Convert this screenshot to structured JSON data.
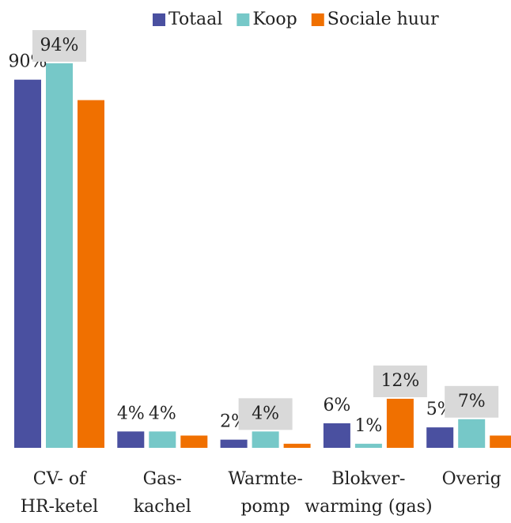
{
  "chart_data": {
    "type": "bar",
    "categories": [
      [
        "CV- of",
        "HR-ketel"
      ],
      [
        "Gas-",
        "kachel"
      ],
      [
        "Warmte-",
        "pomp"
      ],
      [
        "Blokver-",
        "warming (gas)"
      ],
      [
        "Overig"
      ]
    ],
    "series": [
      {
        "name": "Totaal",
        "color": "#4a50a0",
        "values": [
          90,
          4,
          2,
          6,
          5
        ],
        "value_labels": [
          "90%",
          "4%",
          "2%",
          "6%",
          "5%"
        ]
      },
      {
        "name": "Koop",
        "color": "#76c8c8",
        "values": [
          94,
          4,
          4,
          1,
          7
        ],
        "value_labels": [
          "94%",
          "4%",
          "4%",
          "1%",
          "7%"
        ]
      },
      {
        "name": "Sociale huur",
        "color": "#f07000",
        "values": [
          85,
          3,
          1,
          12,
          3
        ],
        "value_labels": [
          null,
          null,
          null,
          "12%",
          null
        ]
      }
    ],
    "legend": "top-right"
  }
}
